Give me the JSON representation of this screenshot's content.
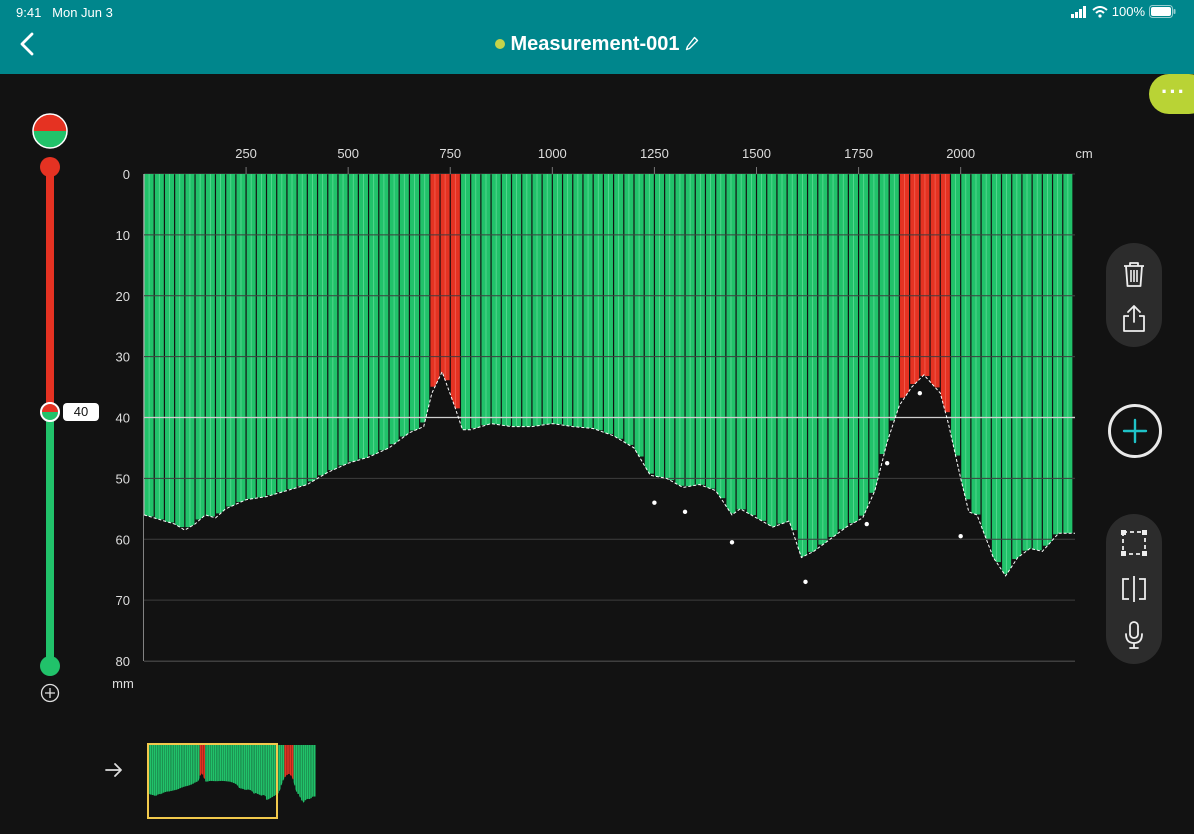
{
  "status_bar": {
    "time": "9:41",
    "date": "Mon Jun 3",
    "battery": "100%"
  },
  "header": {
    "title": "Measurement-001",
    "status_color": "#c4d34a"
  },
  "threshold": {
    "value": "40"
  },
  "colors": {
    "header": "#00868c",
    "ok": "#21c26a",
    "alert": "#e53222",
    "accent": "#b9d335",
    "minimap_frame": "#f2c94c"
  },
  "toolbar": {
    "top_group": [
      "trash-icon",
      "share-icon"
    ],
    "bottom_group": [
      "selection-frame-icon",
      "split-view-icon",
      "microphone-icon"
    ],
    "add_icon": "plus-icon",
    "more_icon": "ellipsis-icon"
  },
  "chart_data": {
    "type": "bar",
    "x_unit": "cm",
    "y_unit": "mm",
    "x_ticks": [
      "250",
      "500",
      "750",
      "1000",
      "1250",
      "1500",
      "1750",
      "2000"
    ],
    "x_tick_values": [
      250,
      500,
      750,
      1000,
      1250,
      1500,
      1750,
      2000
    ],
    "y_ticks": [
      "0",
      "10",
      "20",
      "30",
      "40",
      "50",
      "60",
      "70",
      "80"
    ],
    "y_tick_values": [
      0,
      10,
      20,
      30,
      40,
      50,
      60,
      70,
      80
    ],
    "xlim": [
      0,
      2280
    ],
    "ylim": [
      0,
      80
    ],
    "y_inverted": true,
    "bar_spacing": 25,
    "threshold": 40,
    "grid": true,
    "profile": [
      [
        0,
        56
      ],
      [
        25,
        56.5
      ],
      [
        50,
        57
      ],
      [
        75,
        57.5
      ],
      [
        100,
        58.5
      ],
      [
        125,
        57.5
      ],
      [
        150,
        56
      ],
      [
        175,
        56.5
      ],
      [
        200,
        55
      ],
      [
        250,
        53.5
      ],
      [
        300,
        53
      ],
      [
        350,
        52
      ],
      [
        400,
        51
      ],
      [
        450,
        49
      ],
      [
        500,
        47.5
      ],
      [
        550,
        46.5
      ],
      [
        600,
        45
      ],
      [
        650,
        42.5
      ],
      [
        685,
        41.5
      ],
      [
        705,
        36
      ],
      [
        730,
        32.5
      ],
      [
        760,
        38
      ],
      [
        780,
        42
      ],
      [
        800,
        42
      ],
      [
        850,
        41
      ],
      [
        900,
        41.5
      ],
      [
        950,
        41.5
      ],
      [
        1000,
        41
      ],
      [
        1050,
        41.5
      ],
      [
        1100,
        41.8
      ],
      [
        1150,
        43
      ],
      [
        1200,
        45
      ],
      [
        1240,
        49.5
      ],
      [
        1280,
        50
      ],
      [
        1320,
        51.5
      ],
      [
        1360,
        51
      ],
      [
        1400,
        52
      ],
      [
        1440,
        56
      ],
      [
        1460,
        55
      ],
      [
        1500,
        56.5
      ],
      [
        1540,
        58
      ],
      [
        1580,
        57
      ],
      [
        1610,
        63
      ],
      [
        1640,
        62
      ],
      [
        1680,
        60
      ],
      [
        1720,
        58
      ],
      [
        1760,
        56.5
      ],
      [
        1790,
        52
      ],
      [
        1820,
        44
      ],
      [
        1850,
        38
      ],
      [
        1880,
        35
      ],
      [
        1910,
        33
      ],
      [
        1950,
        36
      ],
      [
        1970,
        41
      ],
      [
        2000,
        50
      ],
      [
        2020,
        55.5
      ],
      [
        2040,
        56
      ],
      [
        2080,
        63
      ],
      [
        2110,
        66
      ],
      [
        2140,
        63
      ],
      [
        2170,
        61.5
      ],
      [
        2200,
        62
      ],
      [
        2240,
        59
      ],
      [
        2280,
        59
      ]
    ],
    "dots": [
      [
        1250,
        54
      ],
      [
        1325,
        55.5
      ],
      [
        1440,
        60.5
      ],
      [
        1620,
        67
      ],
      [
        1770,
        57.5
      ],
      [
        1820,
        47.5
      ],
      [
        1900,
        36
      ],
      [
        2000,
        59.5
      ]
    ]
  }
}
